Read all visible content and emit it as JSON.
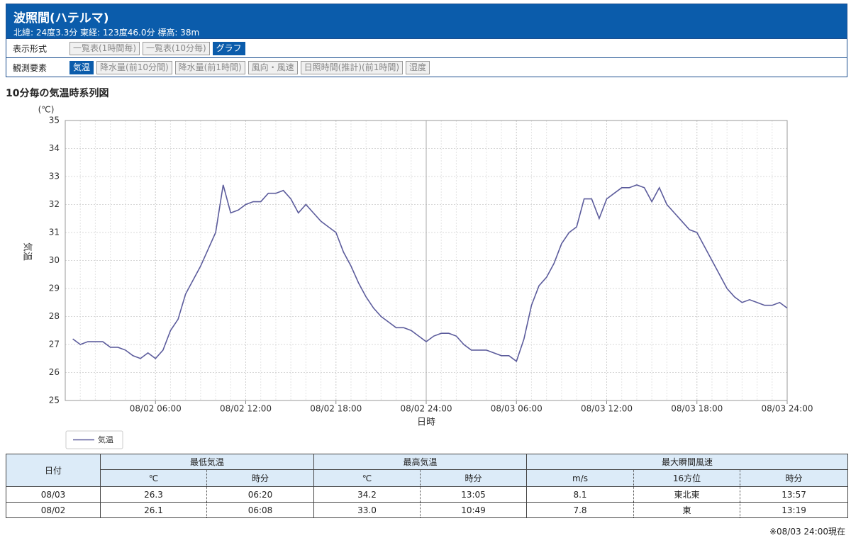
{
  "header": {
    "title": "波照間(ハテルマ)",
    "subtitle": "北緯: 24度3.3分 東経: 123度46.0分 標高: 38m"
  },
  "display": {
    "label": "表示形式",
    "buttons": [
      "一覧表(1時間毎)",
      "一覧表(10分毎)",
      "グラフ"
    ],
    "active": 2
  },
  "elements": {
    "label": "観測要素",
    "buttons": [
      "気温",
      "降水量(前10分間)",
      "降水量(前1時間)",
      "風向・風速",
      "日照時間(推計)(前1時間)",
      "湿度"
    ],
    "active": 0
  },
  "chart_data": {
    "type": "line",
    "title": "10分毎の気温時系列図",
    "y_unit": "(℃)",
    "y_label": "気温",
    "x_label": "日時",
    "xlim": [
      "08/02 00:00",
      "08/03 24:00"
    ],
    "xticks": [
      "08/02 06:00",
      "08/02 12:00",
      "08/02 18:00",
      "08/02 24:00",
      "08/03 06:00",
      "08/03 12:00",
      "08/03 18:00",
      "08/03 24:00"
    ],
    "ylim": [
      25,
      35
    ],
    "yticks": [
      25,
      26,
      27,
      28,
      29,
      30,
      31,
      32,
      33,
      34,
      35
    ],
    "grid": true,
    "legend": "bottom-left",
    "x": [
      "08/02 00:30",
      "08/02 01:00",
      "08/02 01:30",
      "08/02 02:00",
      "08/02 02:30",
      "08/02 03:00",
      "08/02 03:30",
      "08/02 04:00",
      "08/02 04:30",
      "08/02 05:00",
      "08/02 05:30",
      "08/02 06:00",
      "08/02 06:30",
      "08/02 07:00",
      "08/02 07:30",
      "08/02 08:00",
      "08/02 08:30",
      "08/02 09:00",
      "08/02 09:30",
      "08/02 10:00",
      "08/02 10:30",
      "08/02 11:00",
      "08/02 11:30",
      "08/02 12:00",
      "08/02 12:30",
      "08/02 13:00",
      "08/02 13:30",
      "08/02 14:00",
      "08/02 14:30",
      "08/02 15:00",
      "08/02 15:30",
      "08/02 16:00",
      "08/02 16:30",
      "08/02 17:00",
      "08/02 17:30",
      "08/02 18:00",
      "08/02 18:30",
      "08/02 19:00",
      "08/02 19:30",
      "08/02 20:00",
      "08/02 20:30",
      "08/02 21:00",
      "08/02 21:30",
      "08/02 22:00",
      "08/02 22:30",
      "08/02 23:00",
      "08/02 23:30",
      "08/02 24:00",
      "08/03 00:30",
      "08/03 01:00",
      "08/03 01:30",
      "08/03 02:00",
      "08/03 02:30",
      "08/03 03:00",
      "08/03 03:30",
      "08/03 04:00",
      "08/03 04:30",
      "08/03 05:00",
      "08/03 05:30",
      "08/03 06:00",
      "08/03 06:30",
      "08/03 07:00",
      "08/03 07:30",
      "08/03 08:00",
      "08/03 08:30",
      "08/03 09:00",
      "08/03 09:30",
      "08/03 10:00",
      "08/03 10:30",
      "08/03 11:00",
      "08/03 11:30",
      "08/03 12:00",
      "08/03 12:30",
      "08/03 13:00",
      "08/03 13:30",
      "08/03 14:00",
      "08/03 14:30",
      "08/03 15:00",
      "08/03 15:30",
      "08/03 16:00",
      "08/03 16:30",
      "08/03 17:00",
      "08/03 17:30",
      "08/03 18:00",
      "08/03 18:30",
      "08/03 19:00",
      "08/03 19:30",
      "08/03 20:00",
      "08/03 20:30",
      "08/03 21:00",
      "08/03 21:30",
      "08/03 22:00",
      "08/03 22:30",
      "08/03 23:00",
      "08/03 23:30",
      "08/03 24:00"
    ],
    "series": [
      {
        "name": "気温",
        "color": "#5c5c9c",
        "values": [
          27.2,
          27.0,
          27.1,
          27.1,
          27.1,
          26.9,
          26.9,
          26.8,
          26.6,
          26.5,
          26.7,
          26.5,
          26.8,
          27.5,
          27.9,
          28.8,
          29.3,
          29.8,
          30.4,
          31.0,
          32.7,
          31.7,
          31.8,
          32.0,
          32.1,
          32.1,
          32.4,
          32.4,
          32.5,
          32.2,
          31.7,
          32.0,
          31.7,
          31.4,
          31.2,
          31.0,
          30.3,
          29.8,
          29.2,
          28.7,
          28.3,
          28.0,
          27.8,
          27.6,
          27.6,
          27.5,
          27.3,
          27.1,
          27.3,
          27.4,
          27.4,
          27.3,
          27.0,
          26.8,
          26.8,
          26.8,
          26.7,
          26.6,
          26.6,
          26.4,
          27.2,
          28.4,
          29.1,
          29.4,
          29.9,
          30.6,
          31.0,
          31.2,
          32.2,
          32.2,
          31.5,
          32.2,
          32.4,
          32.6,
          32.6,
          32.7,
          32.6,
          32.1,
          32.6,
          32.0,
          31.7,
          31.4,
          31.1,
          31.0,
          30.5,
          30.0,
          29.5,
          29.0,
          28.7,
          28.5,
          28.6,
          28.5,
          28.4,
          28.4,
          28.5,
          28.3
        ]
      }
    ]
  },
  "table": {
    "groups": [
      "日付",
      "最低気温",
      "最高気温",
      "最大瞬間風速"
    ],
    "subheaders": [
      "℃",
      "時分",
      "℃",
      "時分",
      "m/s",
      "16方位",
      "時分"
    ],
    "rows": [
      [
        "08/03",
        "26.3",
        "06:20",
        "34.2",
        "13:05",
        "8.1",
        "東北東",
        "13:57"
      ],
      [
        "08/02",
        "26.1",
        "06:08",
        "33.0",
        "10:49",
        "7.8",
        "東",
        "13:19"
      ]
    ]
  },
  "footer": "※08/03 24:00現在"
}
